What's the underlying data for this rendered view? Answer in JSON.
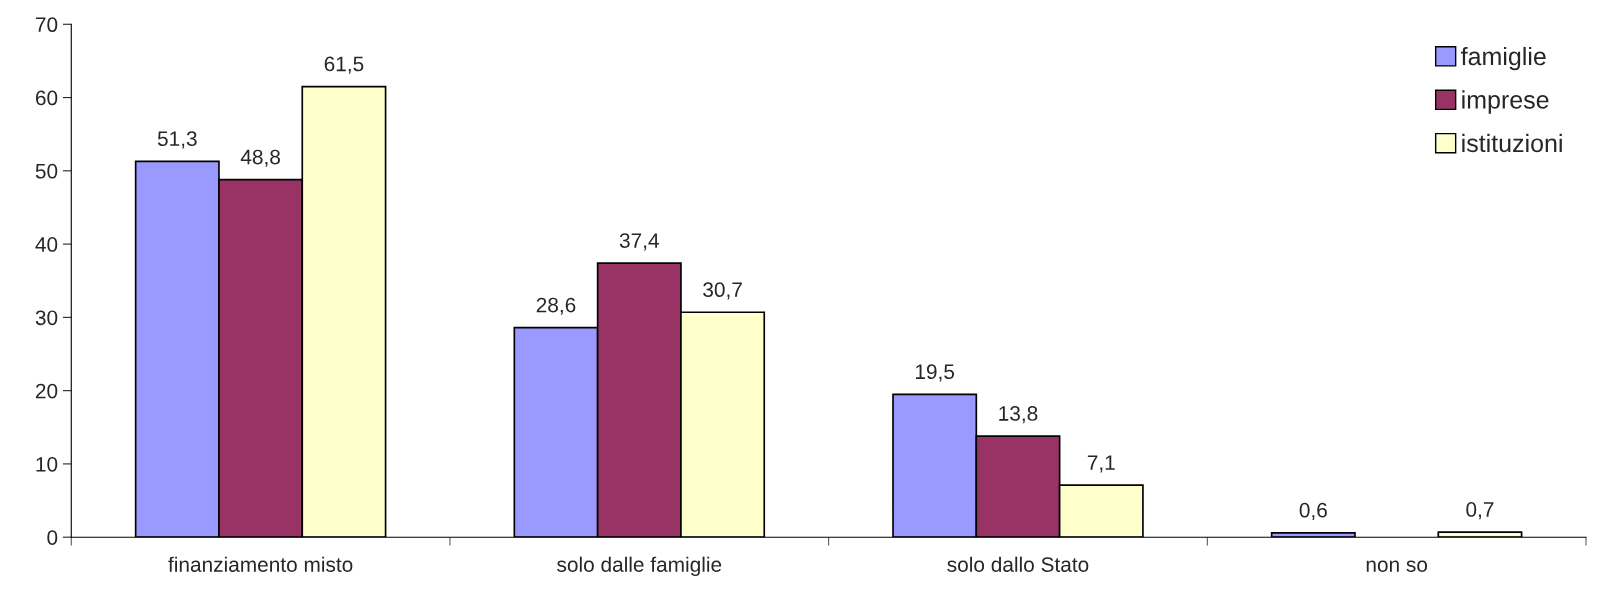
{
  "chart_data": {
    "type": "bar",
    "categories": [
      "finanziamento misto",
      "solo dalle famiglie",
      "solo dallo Stato",
      "non so"
    ],
    "series": [
      {
        "name": "famiglie",
        "color": "#9999ff",
        "values": [
          51.3,
          28.6,
          19.5,
          0.6
        ],
        "value_labels": [
          "51,3",
          "28,6",
          "19,5",
          "0,6"
        ]
      },
      {
        "name": "imprese",
        "color": "#993366",
        "values": [
          48.8,
          37.4,
          13.8,
          null
        ],
        "value_labels": [
          "48,8",
          "37,4",
          "13,8",
          null
        ]
      },
      {
        "name": "istituzioni",
        "color": "#ffffcc",
        "values": [
          61.5,
          30.7,
          7.1,
          0.7
        ],
        "value_labels": [
          "61,5",
          "30,7",
          "7,1",
          "0,7"
        ]
      }
    ],
    "ylim": [
      0,
      70
    ],
    "yticks": [
      0,
      10,
      20,
      30,
      40,
      50,
      60,
      70
    ],
    "grid": false,
    "legend": "top right"
  }
}
